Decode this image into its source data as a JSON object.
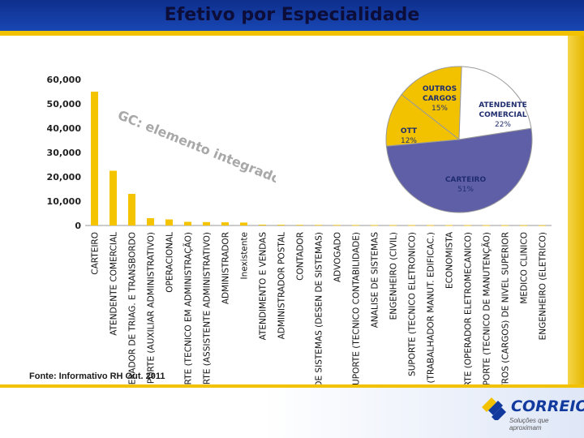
{
  "slide": {
    "title": "Efetivo por Especialidade",
    "source": "Fonte: Informativo RH Out. 2011",
    "overlay_text": "GC: elemento integrador!",
    "logo": {
      "name": "CORREIOS",
      "tagline": "Soluções que aproximam"
    },
    "colors": {
      "title_band": "#1a4ab8",
      "accent": "#f2c200",
      "bar": "#f5c400",
      "background": "#ffffff"
    }
  },
  "chart_data": [
    {
      "type": "bar",
      "title": "",
      "xlabel": "",
      "ylabel": "",
      "ylim": [
        0,
        60000
      ],
      "yticks": [
        "0",
        "10,000",
        "20,000",
        "30,000",
        "40,000",
        "50,000",
        "60,000"
      ],
      "grid": false,
      "categories": [
        "CARTEIRO",
        "ATENDENTE COMERCIAL",
        "OPERADOR DE TRIAG. E TRANSBORDO",
        "SUPORTE (AUXILIAR ADMINISTRATIVO)",
        "OPERACIONAL",
        "SUPORTE (TECNICO EM ADMINISTRAÇÃO)",
        "SUPORTE (ASSISTENTE ADMINISTRATIVO)",
        "ADMINISTRADOR",
        "Inexistente",
        "ATENDIMENTO E VENDAS",
        "ADMINISTRADOR POSTAL",
        "CONTADOR",
        "ANALISTA DE SISTEMAS (DESEN DE SISTEMAS)",
        "ADVOGADO",
        "SUPORTE (TECNICO CONTABILIDADE)",
        "ANALISE DE SISTEMAS",
        "ENGENHEIRO (CIVIL)",
        "SUPORTE (TECNICO ELETRONICO)",
        "SUPORTE (TRABALHADOR MANUT. EDIFICAC.)",
        "ECONOMISTA",
        "SUPORTE (OPERADOR ELETROMECANICO)",
        "SUPORTE (TECNICO DE MANUTENÇÃO)",
        "OUTROS (CARGOS) DE NIVEL SUPERIOR",
        "MEDICO CLINICO",
        "ENGENHEIRO (ELETRICO)"
      ],
      "values": [
        55000,
        22500,
        13000,
        3000,
        2500,
        1500,
        1400,
        1300,
        1200,
        350,
        300,
        250,
        220,
        200,
        180,
        160,
        150,
        140,
        130,
        120,
        110,
        100,
        90,
        80,
        70
      ]
    },
    {
      "type": "pie",
      "labels": [
        "OUTROS CARGOS",
        "ATENDENTE COMERCIAL",
        "CARTEIRO",
        "OTT"
      ],
      "values": [
        15,
        22,
        51,
        12
      ],
      "value_labels": [
        "15%",
        "22%",
        "51%",
        "12%"
      ],
      "colors": [
        "#f2c200",
        "#ffffff",
        "#5f5fa8",
        "#f2c200"
      ]
    }
  ]
}
